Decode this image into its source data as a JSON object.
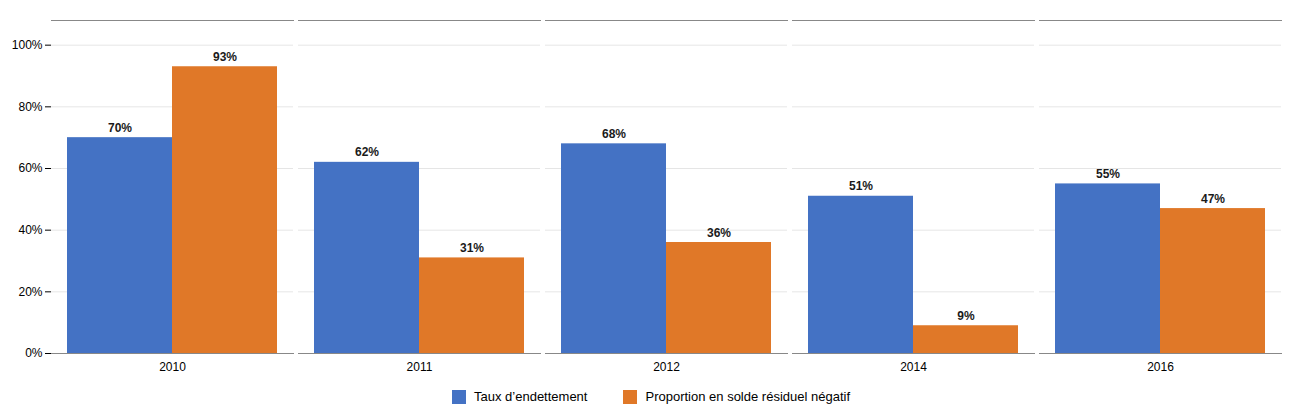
{
  "chart_data": {
    "type": "bar",
    "categories": [
      "2010",
      "2011",
      "2012",
      "2014",
      "2016"
    ],
    "series": [
      {
        "name": "Taux d’endettement",
        "color": "#4472C4",
        "values": [
          70,
          62,
          68,
          51,
          55
        ],
        "value_labels": [
          "70%",
          "62%",
          "68%",
          "51%",
          "55%"
        ]
      },
      {
        "name": "Proportion en solde résiduel négatif",
        "color": "#E07828",
        "values": [
          93,
          31,
          36,
          9,
          47
        ],
        "value_labels": [
          "93%",
          "31%",
          "36%",
          "9%",
          "47%"
        ]
      }
    ],
    "ylim": [
      0,
      108
    ],
    "yticks": [
      {
        "value": 0,
        "label": "0%"
      },
      {
        "value": 20,
        "label": "20%"
      },
      {
        "value": 40,
        "label": "40%"
      },
      {
        "value": 60,
        "label": "60%"
      },
      {
        "value": 80,
        "label": "80%"
      },
      {
        "value": 100,
        "label": "100%"
      }
    ],
    "grid": true,
    "data_labels": true,
    "legend": "bottom"
  }
}
